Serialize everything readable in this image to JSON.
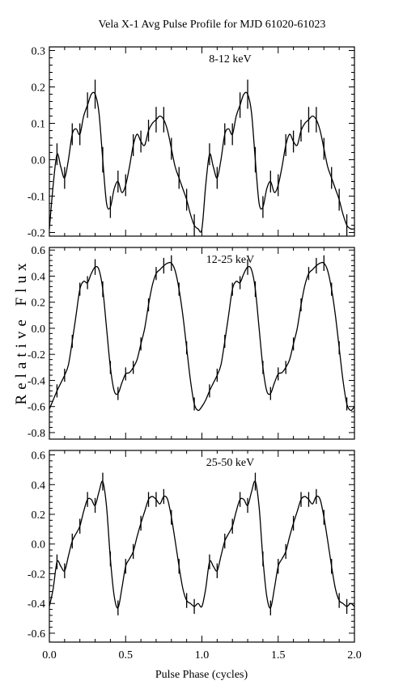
{
  "figure": {
    "title": "Vela X-1   Avg Pulse Profile for MJD 61020-61023",
    "xlabel": "Pulse Phase (cycles)",
    "ylabel": "Relative Flux"
  },
  "chart_data": [
    {
      "type": "line",
      "annotation": "8-12 keV",
      "xlim": [
        0,
        2
      ],
      "ylim": [
        -0.21,
        0.31
      ],
      "yticks": [
        -0.2,
        -0.1,
        0.0,
        0.1,
        0.2,
        0.3
      ],
      "xticks": [
        0.0,
        0.5,
        1.0,
        1.5,
        2.0
      ],
      "x": [
        0.0,
        0.025,
        0.05,
        0.075,
        0.1,
        0.125,
        0.15,
        0.175,
        0.2,
        0.225,
        0.25,
        0.275,
        0.3,
        0.325,
        0.35,
        0.375,
        0.4,
        0.425,
        0.45,
        0.475,
        0.5,
        0.525,
        0.55,
        0.575,
        0.6,
        0.625,
        0.65,
        0.675,
        0.7,
        0.725,
        0.75,
        0.775,
        0.8,
        0.825,
        0.85,
        0.875,
        0.9,
        0.925,
        0.95,
        0.975,
        1.0
      ],
      "values": [
        -0.19,
        -0.07,
        0.015,
        -0.02,
        -0.05,
        0.0,
        0.07,
        0.085,
        0.07,
        0.12,
        0.15,
        0.18,
        0.18,
        0.13,
        0.0,
        -0.12,
        -0.13,
        -0.08,
        -0.06,
        -0.09,
        -0.07,
        -0.02,
        0.04,
        0.07,
        0.05,
        0.04,
        0.08,
        0.1,
        0.11,
        0.12,
        0.11,
        0.08,
        0.03,
        -0.02,
        -0.05,
        -0.08,
        -0.11,
        -0.15,
        -0.18,
        -0.19,
        -0.19
      ],
      "errors": [
        0.03,
        0.03,
        0.03,
        0.03,
        0.03,
        0.03,
        0.03,
        0.03,
        0.03,
        0.03,
        0.035,
        0.04,
        0.04,
        0.04,
        0.035,
        0.03,
        0.03,
        0.03,
        0.03,
        0.03,
        0.03,
        0.03,
        0.03,
        0.03,
        0.03,
        0.03,
        0.03,
        0.03,
        0.035,
        0.035,
        0.035,
        0.03,
        0.03,
        0.03,
        0.03,
        0.03,
        0.03,
        0.03,
        0.03,
        0.03,
        0.03
      ],
      "error_bar_indices": [
        2,
        4,
        6,
        8,
        10,
        12,
        14,
        16,
        18,
        20,
        22,
        24,
        26,
        28,
        30,
        32,
        34,
        36,
        38
      ]
    },
    {
      "type": "line",
      "annotation": "12-25 keV",
      "xlim": [
        0,
        2
      ],
      "ylim": [
        -0.85,
        0.62
      ],
      "yticks": [
        -0.8,
        -0.6,
        -0.4,
        -0.2,
        0.0,
        0.2,
        0.4,
        0.6
      ],
      "xticks": [
        0.0,
        0.5,
        1.0,
        1.5,
        2.0
      ],
      "x": [
        0.0,
        0.025,
        0.05,
        0.075,
        0.1,
        0.125,
        0.15,
        0.175,
        0.2,
        0.225,
        0.25,
        0.275,
        0.3,
        0.325,
        0.35,
        0.375,
        0.4,
        0.425,
        0.45,
        0.475,
        0.5,
        0.525,
        0.55,
        0.575,
        0.6,
        0.625,
        0.65,
        0.675,
        0.7,
        0.725,
        0.75,
        0.775,
        0.8,
        0.825,
        0.85,
        0.875,
        0.9,
        0.925,
        0.95,
        0.975,
        1.0
      ],
      "values": [
        -0.62,
        -0.55,
        -0.48,
        -0.42,
        -0.36,
        -0.28,
        -0.1,
        0.1,
        0.3,
        0.36,
        0.35,
        0.42,
        0.47,
        0.45,
        0.3,
        0.0,
        -0.3,
        -0.48,
        -0.5,
        -0.42,
        -0.35,
        -0.34,
        -0.3,
        -0.24,
        -0.12,
        0.0,
        0.18,
        0.33,
        0.42,
        0.45,
        0.48,
        0.5,
        0.5,
        0.44,
        0.3,
        0.1,
        -0.15,
        -0.4,
        -0.58,
        -0.63,
        -0.6
      ],
      "errors": [
        0.05,
        0.05,
        0.05,
        0.05,
        0.05,
        0.05,
        0.05,
        0.05,
        0.05,
        0.05,
        0.05,
        0.05,
        0.06,
        0.06,
        0.06,
        0.05,
        0.05,
        0.05,
        0.05,
        0.05,
        0.05,
        0.05,
        0.05,
        0.05,
        0.05,
        0.05,
        0.05,
        0.05,
        0.05,
        0.06,
        0.06,
        0.06,
        0.06,
        0.06,
        0.05,
        0.05,
        0.05,
        0.05,
        0.05,
        0.05,
        0.05
      ],
      "error_bar_indices": [
        2,
        4,
        6,
        8,
        10,
        12,
        14,
        16,
        18,
        20,
        22,
        24,
        26,
        28,
        30,
        32,
        34,
        36,
        38
      ]
    },
    {
      "type": "line",
      "annotation": "25-50 keV",
      "xlim": [
        0,
        2
      ],
      "ylim": [
        -0.66,
        0.63
      ],
      "yticks": [
        -0.6,
        -0.4,
        -0.2,
        0.0,
        0.2,
        0.4,
        0.6
      ],
      "xticks": [
        0.0,
        0.5,
        1.0,
        1.5,
        2.0
      ],
      "x": [
        0.0,
        0.025,
        0.05,
        0.075,
        0.1,
        0.125,
        0.15,
        0.175,
        0.2,
        0.225,
        0.25,
        0.275,
        0.3,
        0.325,
        0.35,
        0.375,
        0.4,
        0.425,
        0.45,
        0.475,
        0.5,
        0.525,
        0.55,
        0.575,
        0.6,
        0.625,
        0.65,
        0.675,
        0.7,
        0.725,
        0.75,
        0.775,
        0.8,
        0.825,
        0.85,
        0.875,
        0.9,
        0.925,
        0.95,
        0.975,
        1.0
      ],
      "values": [
        -0.42,
        -0.3,
        -0.12,
        -0.15,
        -0.18,
        -0.08,
        0.02,
        0.07,
        0.12,
        0.22,
        0.3,
        0.3,
        0.26,
        0.35,
        0.42,
        0.25,
        -0.1,
        -0.35,
        -0.43,
        -0.3,
        -0.15,
        -0.1,
        -0.05,
        0.05,
        0.14,
        0.22,
        0.3,
        0.32,
        0.3,
        0.27,
        0.32,
        0.3,
        0.18,
        0.02,
        -0.15,
        -0.3,
        -0.38,
        -0.4,
        -0.42,
        -0.4,
        -0.42
      ],
      "errors": [
        0.05,
        0.05,
        0.05,
        0.05,
        0.05,
        0.05,
        0.05,
        0.05,
        0.05,
        0.05,
        0.05,
        0.05,
        0.05,
        0.06,
        0.06,
        0.05,
        0.05,
        0.05,
        0.05,
        0.05,
        0.05,
        0.05,
        0.05,
        0.05,
        0.05,
        0.05,
        0.05,
        0.05,
        0.05,
        0.05,
        0.05,
        0.05,
        0.05,
        0.05,
        0.05,
        0.05,
        0.05,
        0.05,
        0.05,
        0.05,
        0.05
      ],
      "error_bar_indices": [
        2,
        4,
        6,
        8,
        10,
        12,
        14,
        16,
        18,
        20,
        22,
        24,
        26,
        28,
        30,
        32,
        34,
        36,
        38
      ]
    }
  ]
}
